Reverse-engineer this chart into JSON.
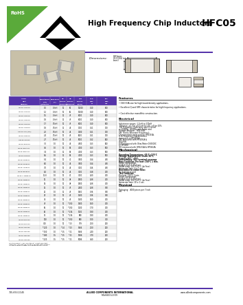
{
  "title": "High Frequency Chip Inductors",
  "part_family": "HFC05",
  "rohs_text": "RoHS",
  "bg_color": "#ffffff",
  "table_header_bg": "#5533aa",
  "header_line_color": "#5533aa",
  "table_rows": [
    [
      "Allied\nPart\nNumber",
      "Inductance\n(nH)\n@100MHz",
      "Tolerance\n(%)",
      "Q1\nTypical\n@100MHz",
      "Q2\nTypical\n@250MHz",
      "SRF\nTypical\n(MHz)",
      "DCR\nMax\nΩ",
      "IDC\nMax\nmA"
    ],
    [
      "HFC05-1N0S-RC",
      "1.0",
      "0.3nH",
      "10",
      "50",
      "10000",
      "0.10",
      "800"
    ],
    [
      "HFC05-1N2S-RC",
      "1.2",
      "0.3nH",
      "10",
      "60",
      "10000",
      "0.10",
      "800"
    ],
    [
      "HFC05-1N5S-RC",
      "1.5",
      "0.3nH",
      "11",
      "47",
      "8000",
      "0.10",
      "800"
    ],
    [
      "HFC05-1N8S-RC",
      "1.8",
      "0.3nH",
      "11",
      "47",
      "8000",
      "0.10",
      "800"
    ],
    [
      "HFC05-1N7S-RC",
      "1.7",
      "0.5nH",
      "10",
      "47",
      "8000",
      "0.10",
      "800"
    ],
    [
      "HFC05-1N6K-RC",
      "1.8",
      "0.5nH",
      "11",
      "44",
      "7000",
      "0.11",
      "700"
    ],
    [
      "HFC05-2N0 (dyn)",
      "2.0",
      "0.5nH",
      "10",
      "44",
      "7200",
      "0.11",
      "700"
    ],
    [
      "HFC05-2N4S-RC",
      "2.4",
      "0.5nH",
      "10",
      "43",
      "6000",
      "0.11",
      "700"
    ],
    [
      "HFC05-2N1 RC",
      "2.7",
      "0.5nH",
      "10",
      "45",
      "5000",
      "0.12",
      "600"
    ],
    [
      "HFC05-3NTX-RC",
      "3.0",
      "1.0",
      "10",
      "44",
      "4500",
      "0.13",
      "600"
    ],
    [
      "HFC05-3N6A-RC",
      "3.6",
      "1.0",
      "10",
      "54",
      "4100",
      "0.13",
      "500"
    ],
    [
      "HFC05-3N4A-RC",
      "3.4",
      "1.0",
      "11",
      "54",
      "4100",
      "0.13",
      "500"
    ],
    [
      "HFC05-5N6K-RC",
      "5.6",
      "1.0",
      "11",
      "54",
      "4100",
      "0.13",
      "500"
    ],
    [
      "HFC05-5N4R-RC",
      "5.4",
      "1.0",
      "10",
      "41",
      "3700",
      "0.14",
      "450"
    ],
    [
      "HFC05-6N0R-RC",
      "6.0",
      "1.0",
      "10",
      "44",
      "3700",
      "0.14",
      "450"
    ],
    [
      "HFC05-7N0R-RC",
      "7.0",
      "1.0",
      "10",
      "44",
      "3000",
      "0.16",
      "450"
    ],
    [
      "HFC05-8N2R-RC",
      "8.2",
      "1.0",
      "10",
      "44",
      "3000",
      "0.18",
      "400"
    ],
    [
      "HFC05-1-1NMR-RC",
      "11.8",
      "1.0",
      "10",
      "40",
      "3000",
      "0.20",
      "400"
    ],
    [
      "HFC05-12NR-RC",
      "12",
      "1.0",
      "10",
      "48",
      "2500",
      "0.28",
      "400"
    ],
    [
      "HFC05-14NR-RC",
      "14",
      "1.0",
      "10",
      "48",
      "2500",
      "0.28",
      "400"
    ],
    [
      "HFC05-15NR-RC",
      "15",
      "1.0",
      "10",
      "47",
      "2400",
      "0.28",
      "350"
    ],
    [
      "HFC05-20NR-RC",
      "20",
      "1.0",
      "11",
      "43",
      "1900",
      "0.36",
      "350"
    ],
    [
      "HFC05-27NR-RC",
      "27",
      "1.0",
      "10",
      "43",
      "1500",
      "0.36",
      "350"
    ],
    [
      "HFC05-32NR-RC",
      "32",
      "1.0",
      "10",
      "43",
      "1500",
      "1.60",
      "400"
    ],
    [
      "HFC05-47NR-RC",
      "47",
      "1.0",
      "10",
      "**150",
      "1400",
      "1.60",
      "400"
    ],
    [
      "HFC05-56NR-RC",
      "56",
      "1.0",
      "10",
      "**150",
      "1100",
      "1.70",
      "400"
    ],
    [
      "HFC05-62NR-RC",
      "62",
      "1.0",
      "10",
      "**134",
      "1000",
      "1.80",
      "400"
    ],
    [
      "HFC05-75NR-RC",
      "75",
      "1.0",
      "10",
      "**134",
      "900",
      "1.80",
      "400"
    ],
    [
      "HFC05-R10K-RC",
      "100",
      "1.0",
      "10",
      "**150",
      "900",
      "1.00",
      "300"
    ],
    [
      "HFC05-R12K-RC",
      "300",
      "1.0",
      "10",
      "**23",
      "779",
      "2.50",
      "200"
    ],
    [
      "HFC05-120K-RC",
      "**120",
      "1.0",
      "**14",
      "**23",
      "5566",
      "2.50",
      "200"
    ],
    [
      "HFC05-150K-RC",
      "**150",
      "1.0",
      "**15",
      "**21",
      "5566",
      "2.40",
      "200"
    ],
    [
      "HFC05-180K-RC",
      "**180",
      "1.5",
      "**15",
      "**21",
      "5286",
      "3.70",
      "200"
    ],
    [
      "HFC05-220K-RC",
      "**220",
      "1.5",
      "**15",
      "**21",
      "5086",
      "3.60",
      "200"
    ]
  ],
  "footnote": "*For tolerance; **For inductance; ***Not Mounted;\nAdditional inductances values available upon request.\nAll specifications subject to change without notice.",
  "features_title": "Features",
  "features": [
    "0603 EIA size for high board density applications.",
    "Excellent Q and SRF characteristics for high frequency applications.",
    "Cost effective monolithic construction."
  ],
  "electrical_title": "Electrical",
  "electrical_lines": [
    "Inductance ranges: 1.0 nH to 270nH",
    "Tolerance: ±0.3 or ±0.5 nH for 1%; ±5 for 10%.",
    "Test Frequency: Inductance and Q tested",
    "at 100MHz; 250MHz with Rohde and",
    "Schwarz Analyzer - HP4191B.",
    "SRF (Series Resonant Frequency):",
    "Characteristics measured on HP4191A.",
    "Q vs Frequency Characteristics",
    "measured on HP4291A.",
    "SRF measured with HP4291A &",
    "HP4191B.",
    "DCR measured with Ohm-Meter CH6508C",
    "or HP3466.",
    "IDC measured with HP4231A & HP3632A"
  ],
  "mechanical_title": "Mechanical",
  "mechanical_lines": [
    [
      "Operating Temperature: -55°C~125°C",
      true
    ],
    [
      "Storage Temperature: Under 20°C,",
      true
    ],
    [
      "Humidity 40% ~ 85%.",
      false
    ],
    [
      "Solderability: 90% terminal coverage",
      true
    ],
    [
      "Base Condition: Pre heat: 150°C 1 min,",
      true
    ],
    [
      "Solder composition:",
      false
    ],
    [
      "Sn/Ag3.5Cu0.5 (Pb free)",
      false
    ],
    [
      "Solder temp: 245°C±5°C (pb Free)",
      false
    ],
    [
      "Immersion time: 4 ± 1 sec.",
      false
    ],
    [
      "Resistance to solder heat:",
      true
    ],
    [
      "No damage to part",
      false
    ],
    [
      "Test Condition:",
      true
    ],
    [
      "Pre heat: 150°C 3 min.",
      false
    ],
    [
      "Solder composition:",
      false
    ],
    [
      "Sn/Ag3.5Cu0.5 (Pb free)",
      false
    ],
    [
      "Solder temp: 250°C±5°C (pb Free)",
      false
    ],
    [
      "Immersion time: 10 ± 1 sec.",
      false
    ]
  ],
  "physical_title": "Physical",
  "physical_lines": [
    "Packaging:  4000 pieces per 7 inch",
    "reel."
  ],
  "footer_left": "715-653-1145",
  "footer_center": "ALLIED COMPONENTS INTERNATIONAL",
  "footer_right": "www.alliedcomponents.com",
  "footer_revised": "REVISED 3/23/09"
}
